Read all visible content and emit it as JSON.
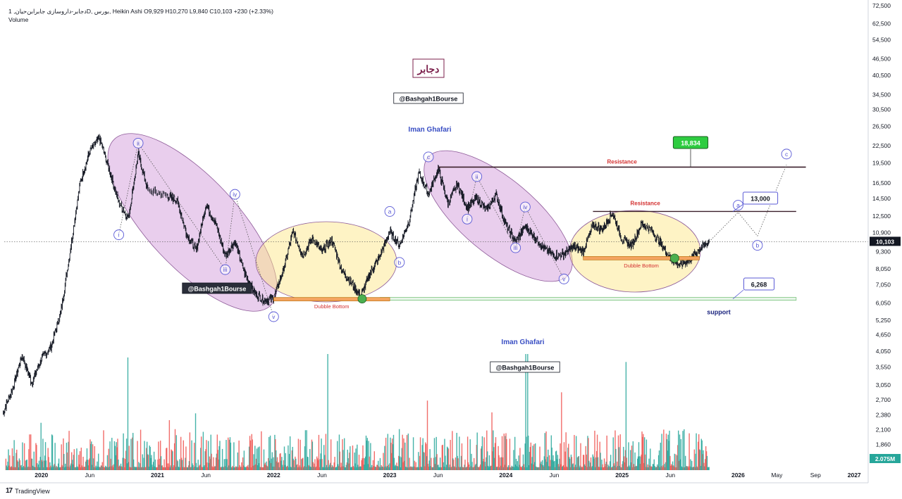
{
  "header": {
    "title_line": "دجابر-داروسازی جابرابن‌حیان, 1D, بورس, Heikin Ashi  O9,929  H10,270  L9,840  C10,103  +230 (+2.33%)",
    "volume_label": "Volume"
  },
  "footer": {
    "brand_logo": "17",
    "brand_name": "TradingView"
  },
  "colors": {
    "up": "#26a69a",
    "down": "#ef5350",
    "price": "#131722",
    "wave_ellipse": "#ce93d8",
    "base_ellipse": "#fde47f",
    "wave_label": "#5b5bd6",
    "resistance": "#d32f2f",
    "support_line": "#a5d6a7",
    "target_badge": "#2ecc40",
    "dark_badge": "#2a2e39",
    "last_price_badge": "#131722",
    "volume_badge": "#26a69a"
  },
  "chart_data": {
    "type": "candlestick",
    "scale": "log",
    "title": "دجابر-داروسازی جابرابن‌حیان, 1D, بورس, Heikin Ashi",
    "ohlc_last": {
      "open": 9929,
      "high": 10270,
      "low": 9840,
      "close": 10103,
      "change": 230,
      "change_pct": 2.33
    },
    "last_price": "10,103",
    "volume_last": "2.075M",
    "ylim": [
      1500,
      72500
    ],
    "y_ticks": [
      72500,
      62500,
      54500,
      46500,
      40500,
      34500,
      30500,
      26500,
      22500,
      19500,
      16500,
      14500,
      12500,
      10900,
      9300,
      8050,
      7050,
      6050,
      5250,
      4650,
      4050,
      3550,
      3050,
      2700,
      2380,
      2100,
      1860
    ],
    "y_tick_labels": [
      "72,500",
      "62,500",
      "54,500",
      "46,500",
      "40,500",
      "34,500",
      "30,500",
      "26,500",
      "22,500",
      "19,500",
      "16,500",
      "14,500",
      "12,500",
      "10,900",
      "9,300",
      "8,050",
      "7,050",
      "6,050",
      "5,250",
      "4,650",
      "4,050",
      "3,550",
      "3,050",
      "2,700",
      "2,380",
      "2,100",
      "1,860"
    ],
    "x_ticks": [
      "2020",
      "Jun",
      "2021",
      "Jun",
      "2022",
      "Jun",
      "2023",
      "Jun",
      "2024",
      "Jun",
      "2025",
      "Jun",
      "2026",
      "May",
      "Sep",
      "2027"
    ],
    "x_tick_dates": [
      "2020-01",
      "2020-06",
      "2021-01",
      "2021-06",
      "2022-01",
      "2022-06",
      "2023-01",
      "2023-06",
      "2024-01",
      "2024-06",
      "2025-01",
      "2025-06",
      "2026-01",
      "2026-05",
      "2026-09",
      "2027-01"
    ],
    "price_path": [
      [
        "2019-09",
        2400
      ],
      [
        "2019-10",
        2950
      ],
      [
        "2019-11",
        3900
      ],
      [
        "2019-12",
        3100
      ],
      [
        "2020-01",
        3800
      ],
      [
        "2020-02",
        4200
      ],
      [
        "2020-03",
        5600
      ],
      [
        "2020-04",
        9500
      ],
      [
        "2020-05",
        16500
      ],
      [
        "2020-06",
        21500
      ],
      [
        "2020-07",
        24000
      ],
      [
        "2020-08",
        18500
      ],
      [
        "2020-09",
        14000
      ],
      [
        "2020-10",
        12300
      ],
      [
        "2020-11",
        21000
      ],
      [
        "2020-12",
        15500
      ],
      [
        "2021-02",
        14800
      ],
      [
        "2021-03",
        14300
      ],
      [
        "2021-04",
        10800
      ],
      [
        "2021-05",
        9400
      ],
      [
        "2021-06",
        13800
      ],
      [
        "2021-07",
        11800
      ],
      [
        "2021-08",
        9000
      ],
      [
        "2021-09",
        10100
      ],
      [
        "2021-10",
        7800
      ],
      [
        "2021-11",
        6600
      ],
      [
        "2021-12",
        6200
      ],
      [
        "2022-01",
        6300
      ],
      [
        "2022-02",
        8000
      ],
      [
        "2022-03",
        11000
      ],
      [
        "2022-04",
        9000
      ],
      [
        "2022-05",
        10400
      ],
      [
        "2022-06",
        9300
      ],
      [
        "2022-07",
        10300
      ],
      [
        "2022-08",
        8000
      ],
      [
        "2022-09",
        7200
      ],
      [
        "2022-10",
        6400
      ],
      [
        "2022-11",
        7800
      ],
      [
        "2022-12",
        9000
      ],
      [
        "2023-01",
        11000
      ],
      [
        "2023-02",
        9800
      ],
      [
        "2023-03",
        12000
      ],
      [
        "2023-04",
        18000
      ],
      [
        "2023-05",
        15000
      ],
      [
        "2023-06",
        18500
      ],
      [
        "2023-07",
        14000
      ],
      [
        "2023-08",
        16300
      ],
      [
        "2023-09",
        13400
      ],
      [
        "2023-10",
        14500
      ],
      [
        "2023-11",
        13200
      ],
      [
        "2023-12",
        15000
      ],
      [
        "2024-01",
        11600
      ],
      [
        "2024-02",
        10100
      ],
      [
        "2024-03",
        11500
      ],
      [
        "2024-04",
        10500
      ],
      [
        "2024-05",
        9500
      ],
      [
        "2024-06",
        9000
      ],
      [
        "2024-07",
        9100
      ],
      [
        "2024-08",
        9700
      ],
      [
        "2024-09",
        9300
      ],
      [
        "2024-10",
        11600
      ],
      [
        "2024-11",
        11200
      ],
      [
        "2024-12",
        12900
      ],
      [
        "2025-01",
        10300
      ],
      [
        "2025-02",
        9800
      ],
      [
        "2025-03",
        11700
      ],
      [
        "2025-04",
        11200
      ],
      [
        "2025-05",
        10000
      ],
      [
        "2025-06",
        8800
      ],
      [
        "2025-07",
        8300
      ],
      [
        "2025-08",
        8700
      ],
      [
        "2025-09",
        9500
      ],
      [
        "2025-10",
        10103
      ]
    ],
    "projection_path": [
      [
        "2025-10",
        10103
      ],
      [
        "2026-01",
        12900
      ],
      [
        "2026-03",
        10600
      ],
      [
        "2026-06",
        19200
      ]
    ],
    "volume_label": "Volume",
    "annotations": {
      "resistance_upper": {
        "label": "Resistance",
        "value": 18834,
        "from": "2023-06",
        "to": "2026-08",
        "badge": "18,834"
      },
      "resistance_lower": {
        "label": "Resistance",
        "value": 13000,
        "from": "2024-10",
        "to": "2026-07",
        "badge": "13,000"
      },
      "support": {
        "label": "support",
        "value": 6268,
        "from": "2022-12",
        "to": "2026-07",
        "badge": "6,268"
      },
      "double_bottom_1": {
        "label": "Dubble Bottom",
        "value": 6250,
        "from": "2022-01",
        "to": "2023-01"
      },
      "double_bottom_2": {
        "label": "Dubble Bottom",
        "value": 8800,
        "from": "2024-09",
        "to": "2025-09"
      },
      "waves_first": [
        {
          "label": "i",
          "date": "2020-09",
          "value": 10700
        },
        {
          "label": "ii",
          "date": "2020-11",
          "value": 23000
        },
        {
          "label": "iii",
          "date": "2021-08",
          "value": 8000
        },
        {
          "label": "iv",
          "date": "2021-09",
          "value": 15000
        },
        {
          "label": "v",
          "date": "2022-01",
          "value": 5400
        }
      ],
      "waves_abc": [
        {
          "label": "a",
          "date": "2023-01",
          "value": 13000
        },
        {
          "label": "b",
          "date": "2023-02",
          "value": 8500
        },
        {
          "label": "c",
          "date": "2023-05",
          "value": 20500
        }
      ],
      "waves_second": [
        {
          "label": "i",
          "date": "2023-09",
          "value": 12200
        },
        {
          "label": "ii",
          "date": "2023-10",
          "value": 17400
        },
        {
          "label": "iii",
          "date": "2024-02",
          "value": 9600
        },
        {
          "label": "iv",
          "date": "2024-03",
          "value": 13500
        },
        {
          "label": "v",
          "date": "2024-07",
          "value": 7400
        }
      ],
      "waves_projection": [
        {
          "label": "a",
          "date": "2026-01",
          "value": 13700
        },
        {
          "label": "b",
          "date": "2026-03",
          "value": 9800
        },
        {
          "label": "c",
          "date": "2026-06",
          "value": 21000
        }
      ]
    },
    "text_notes": [
      {
        "key": "logo_fa",
        "text": "دجابر"
      },
      {
        "key": "handle_top",
        "text": "@Bashgah1Bourse"
      },
      {
        "key": "author_top",
        "text": "Iman Ghafari"
      },
      {
        "key": "handle_left",
        "text": "@Bashgah1Bourse"
      },
      {
        "key": "author_bottom",
        "text": "Iman Ghafari"
      },
      {
        "key": "handle_bottom",
        "text": "@Bashgah1Bourse"
      }
    ]
  }
}
